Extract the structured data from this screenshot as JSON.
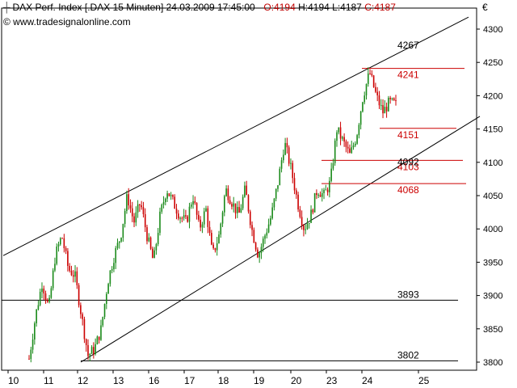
{
  "header": {
    "icon": "candlestick-icon",
    "title_main": "DAX Perf. Index [.DAX  15 Minuten] 24.03.2009 17:45:00 - ",
    "open": "O:4194",
    "high": "H:4194",
    "low": "L:4187",
    "close": "C:4187"
  },
  "copyright": "© www.tradesignalonline.com",
  "currency": "€",
  "colors": {
    "up": "#1a8a1a",
    "down": "#cc0000",
    "trendline": "#000000",
    "resistance": "#cc0000",
    "support_black": "#000000",
    "grid": "#000000"
  },
  "chart_data": {
    "type": "candlestick",
    "title": "DAX Perf. Index [.DAX  15 Minuten]",
    "ylim": [
      3790,
      4330
    ],
    "y_ticks": [
      "3800",
      "3850",
      "3900",
      "3950",
      "4000",
      "4050",
      "4100",
      "4150",
      "4200",
      "4250",
      "4300"
    ],
    "x_ticks": [
      "10",
      "11",
      "12",
      "13",
      "16",
      "17",
      "18",
      "19",
      "20",
      "23",
      "24",
      "25"
    ],
    "horizontal_levels": [
      {
        "label": "4267",
        "value": 4267,
        "color": "black"
      },
      {
        "label": "4241",
        "value": 4241,
        "color": "red"
      },
      {
        "label": "4151",
        "value": 4151,
        "color": "red"
      },
      {
        "label": "4103",
        "value": 4103,
        "color": "red"
      },
      {
        "label": "4092",
        "value": 4092,
        "color": "black"
      },
      {
        "label": "4068",
        "value": 4068,
        "color": "red"
      },
      {
        "label": "3893",
        "value": 3893,
        "color": "black"
      },
      {
        "label": "3802",
        "value": 3802,
        "color": "black"
      }
    ],
    "price_path": [
      [
        0,
        3805
      ],
      [
        4,
        3870
      ],
      [
        8,
        3920
      ],
      [
        12,
        3880
      ],
      [
        16,
        3960
      ],
      [
        20,
        3990
      ],
      [
        24,
        3940
      ],
      [
        28,
        3930
      ],
      [
        32,
        3870
      ],
      [
        36,
        3810
      ],
      [
        40,
        3820
      ],
      [
        44,
        3850
      ],
      [
        48,
        3920
      ],
      [
        52,
        3960
      ],
      [
        56,
        3990
      ],
      [
        60,
        4050
      ],
      [
        64,
        4010
      ],
      [
        68,
        4040
      ],
      [
        72,
        3990
      ],
      [
        76,
        3950
      ],
      [
        80,
        4020
      ],
      [
        84,
        4060
      ],
      [
        88,
        4040
      ],
      [
        92,
        4020
      ],
      [
        96,
        4010
      ],
      [
        100,
        4050
      ],
      [
        104,
        4000
      ],
      [
        108,
        4030
      ],
      [
        112,
        3960
      ],
      [
        116,
        3990
      ],
      [
        120,
        4060
      ],
      [
        124,
        4040
      ],
      [
        128,
        4020
      ],
      [
        132,
        4060
      ],
      [
        136,
        4000
      ],
      [
        140,
        3960
      ],
      [
        144,
        3990
      ],
      [
        148,
        4020
      ],
      [
        152,
        4070
      ],
      [
        156,
        4130
      ],
      [
        160,
        4090
      ],
      [
        164,
        4040
      ],
      [
        168,
        4000
      ],
      [
        172,
        4020
      ],
      [
        176,
        4060
      ],
      [
        180,
        4050
      ],
      [
        184,
        4070
      ],
      [
        188,
        4150
      ],
      [
        192,
        4130
      ],
      [
        196,
        4110
      ],
      [
        200,
        4140
      ],
      [
        204,
        4200
      ],
      [
        208,
        4235
      ],
      [
        212,
        4200
      ],
      [
        216,
        4175
      ],
      [
        220,
        4190
      ],
      [
        224,
        4187
      ]
    ]
  }
}
